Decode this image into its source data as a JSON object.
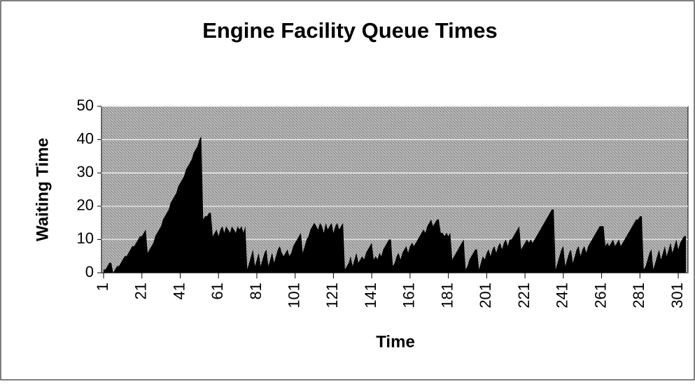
{
  "chart_data": {
    "type": "area",
    "title": "Engine Facility Queue Times",
    "x_label": "Time",
    "y_label": "Waiting Time",
    "color": "#000000",
    "xlim": [
      1,
      305
    ],
    "xticks": [
      1,
      21,
      41,
      61,
      81,
      101,
      121,
      141,
      161,
      181,
      201,
      221,
      241,
      261,
      281,
      301
    ],
    "ylim": [
      0,
      50
    ],
    "yticks": [
      0,
      10,
      20,
      30,
      40,
      50
    ],
    "grid": true,
    "x": [
      1,
      2,
      3,
      4,
      5,
      6,
      7,
      8,
      9,
      10,
      11,
      12,
      13,
      14,
      15,
      16,
      17,
      18,
      19,
      20,
      21,
      22,
      23,
      24,
      25,
      26,
      27,
      28,
      29,
      30,
      31,
      32,
      33,
      34,
      35,
      36,
      37,
      38,
      39,
      40,
      41,
      42,
      43,
      44,
      45,
      46,
      47,
      48,
      49,
      50,
      51,
      52,
      53,
      54,
      55,
      56,
      57,
      58,
      59,
      60,
      61,
      62,
      63,
      64,
      65,
      66,
      67,
      68,
      69,
      70,
      71,
      72,
      73,
      74,
      75,
      76,
      77,
      78,
      79,
      80,
      81,
      82,
      83,
      84,
      85,
      86,
      87,
      88,
      89,
      90,
      91,
      92,
      93,
      94,
      95,
      96,
      97,
      98,
      99,
      100,
      101,
      102,
      103,
      104,
      105,
      106,
      107,
      108,
      109,
      110,
      111,
      112,
      113,
      114,
      115,
      116,
      117,
      118,
      119,
      120,
      121,
      122,
      123,
      124,
      125,
      126,
      127,
      128,
      129,
      130,
      131,
      132,
      133,
      134,
      135,
      136,
      137,
      138,
      139,
      140,
      141,
      142,
      143,
      144,
      145,
      146,
      147,
      148,
      149,
      150,
      151,
      152,
      153,
      154,
      155,
      156,
      157,
      158,
      159,
      160,
      161,
      162,
      163,
      164,
      165,
      166,
      167,
      168,
      169,
      170,
      171,
      172,
      173,
      174,
      175,
      176,
      177,
      178,
      179,
      180,
      181,
      182,
      183,
      184,
      185,
      186,
      187,
      188,
      189,
      190,
      191,
      192,
      193,
      194,
      195,
      196,
      197,
      198,
      199,
      200,
      201,
      202,
      203,
      204,
      205,
      206,
      207,
      208,
      209,
      210,
      211,
      212,
      213,
      214,
      215,
      216,
      217,
      218,
      219,
      220,
      221,
      222,
      223,
      224,
      225,
      226,
      227,
      228,
      229,
      230,
      231,
      232,
      233,
      234,
      235,
      236,
      237,
      238,
      239,
      240,
      241,
      242,
      243,
      244,
      245,
      246,
      247,
      248,
      249,
      250,
      251,
      252,
      253,
      254,
      255,
      256,
      257,
      258,
      259,
      260,
      261,
      262,
      263,
      264,
      265,
      266,
      267,
      268,
      269,
      270,
      271,
      272,
      273,
      274,
      275,
      276,
      277,
      278,
      279,
      280,
      281,
      282,
      283,
      284,
      285,
      286,
      287,
      288,
      289,
      290,
      291,
      292,
      293,
      294,
      295,
      296,
      297,
      298,
      299,
      300,
      301,
      302,
      303,
      304,
      305
    ],
    "values": [
      1,
      1,
      2,
      3,
      3,
      0,
      1,
      2,
      2,
      3,
      4,
      5,
      5,
      6,
      7,
      8,
      8,
      9,
      10,
      11,
      11,
      12,
      13,
      6,
      7,
      8,
      9,
      11,
      12,
      13,
      14,
      16,
      17,
      18,
      19,
      21,
      22,
      23,
      24,
      26,
      27,
      28,
      29,
      31,
      32,
      33,
      34,
      36,
      37,
      38,
      40,
      41,
      16,
      17,
      17,
      18,
      18,
      11,
      12,
      13,
      11,
      13,
      14,
      12,
      14,
      13,
      12,
      14,
      13,
      12,
      14,
      13,
      14,
      12,
      14,
      1,
      3,
      5,
      7,
      2,
      4,
      6,
      2,
      4,
      6,
      7,
      2,
      4,
      6,
      3,
      5,
      7,
      8,
      6,
      5,
      6,
      7,
      5,
      6,
      8,
      9,
      10,
      11,
      12,
      6,
      8,
      10,
      11,
      13,
      14,
      15,
      14,
      13,
      15,
      14,
      12,
      15,
      13,
      14,
      15,
      12,
      14,
      15,
      13,
      14,
      15,
      1,
      2,
      3,
      5,
      2,
      4,
      6,
      3,
      4,
      5,
      4,
      6,
      7,
      8,
      9,
      4,
      5,
      4,
      6,
      5,
      7,
      8,
      9,
      10,
      10,
      2,
      3,
      5,
      6,
      4,
      6,
      7,
      8,
      6,
      8,
      9,
      8,
      9,
      10,
      11,
      12,
      13,
      12,
      14,
      15,
      16,
      14,
      15,
      16,
      16,
      12,
      12,
      11,
      12,
      11,
      12,
      4,
      5,
      6,
      7,
      8,
      9,
      10,
      1,
      2,
      4,
      5,
      6,
      7,
      7,
      1,
      3,
      5,
      4,
      6,
      7,
      5,
      7,
      8,
      6,
      8,
      9,
      7,
      9,
      10,
      8,
      10,
      10,
      11,
      12,
      13,
      14,
      7,
      8,
      9,
      10,
      9,
      10,
      9,
      10,
      11,
      12,
      13,
      14,
      15,
      16,
      17,
      18,
      19,
      19,
      1,
      3,
      5,
      7,
      8,
      2,
      4,
      6,
      7,
      3,
      5,
      7,
      8,
      5,
      7,
      8,
      6,
      8,
      9,
      10,
      11,
      12,
      13,
      14,
      14,
      14,
      8,
      9,
      8,
      9,
      10,
      8,
      9,
      10,
      8,
      9,
      10,
      11,
      12,
      13,
      14,
      15,
      16,
      16,
      17,
      17,
      1,
      2,
      4,
      6,
      7,
      1,
      3,
      5,
      7,
      4,
      6,
      8,
      5,
      7,
      9,
      6,
      8,
      10,
      7,
      9,
      10,
      11,
      11
    ]
  }
}
